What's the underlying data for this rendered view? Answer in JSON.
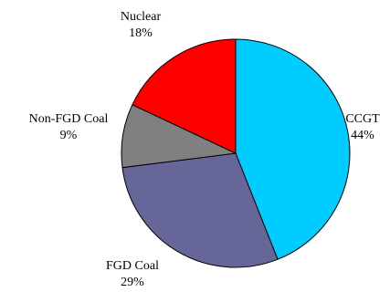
{
  "chart_data": {
    "type": "pie",
    "title": "",
    "start_angle_deg": 0,
    "direction": "clockwise",
    "slices": [
      {
        "label": "CCGT",
        "value": 44,
        "value_text": "44%",
        "color": "#00CCFF"
      },
      {
        "label": "FGD Coal",
        "value": 29,
        "value_text": "29%",
        "color": "#666699"
      },
      {
        "label": "Non-FGD Coal",
        "value": 9,
        "value_text": "9%",
        "color": "#808080"
      },
      {
        "label": "Nuclear",
        "value": 18,
        "value_text": "18%",
        "color": "#FF0000"
      }
    ],
    "border_color": "#000000",
    "legend": "none"
  }
}
